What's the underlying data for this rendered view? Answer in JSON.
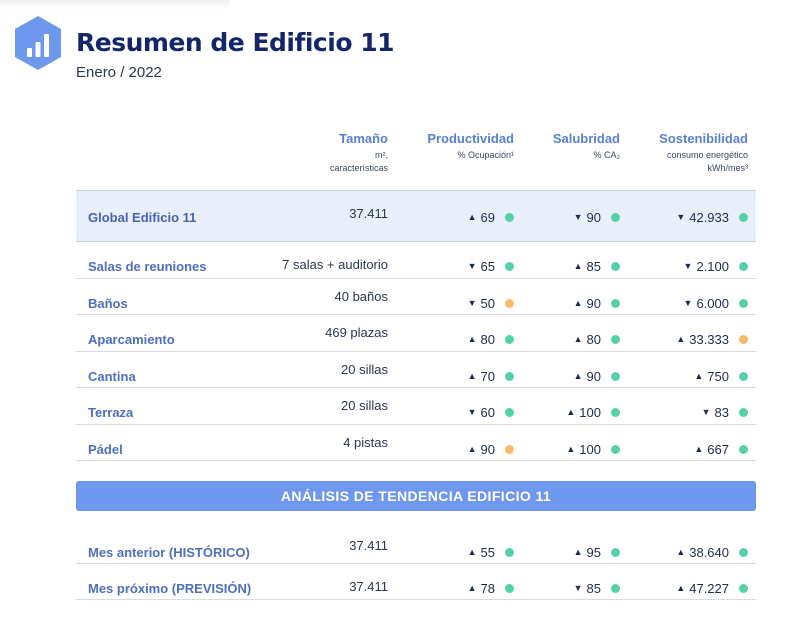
{
  "header": {
    "title": "Resumen de Edificio 11",
    "subtitle": "Enero / 2022"
  },
  "colors": {
    "accent": "#6e97ee",
    "title": "#13266a",
    "dot_green": "#55d1a6",
    "dot_orange": "#f7bb6a",
    "global_row_bg": "#e9effa"
  },
  "columns": {
    "size": {
      "label": "Tamaño",
      "sub1": "m², ",
      "sub2": "características"
    },
    "prod": {
      "label": "Productividad",
      "sub1": "% Ocupación¹",
      "sub2": ""
    },
    "sal": {
      "label": "Salubridad",
      "sub1": "% CA₂",
      "sub2": ""
    },
    "sost": {
      "label": "Sostenibilidad",
      "sub1": "consumo energético",
      "sub2": "kWh/mes³"
    }
  },
  "rows": [
    {
      "name": "Global Edificio 11",
      "size": "37.411",
      "prod": "69",
      "prod_dir": "up",
      "prod_status": "green",
      "sal": "90",
      "sal_dir": "down",
      "sal_status": "green",
      "sost": "42.933",
      "sost_dir": "down",
      "sost_status": "green"
    },
    {
      "name": "Salas de reuniones",
      "size": "7 salas + auditorio",
      "prod": "65",
      "prod_dir": "down",
      "prod_status": "green",
      "sal": "85",
      "sal_dir": "up",
      "sal_status": "green",
      "sost": "2.100",
      "sost_dir": "down",
      "sost_status": "green"
    },
    {
      "name": "Baños",
      "size": "40 baños",
      "prod": "50",
      "prod_dir": "down",
      "prod_status": "orange",
      "sal": "90",
      "sal_dir": "up",
      "sal_status": "green",
      "sost": "6.000",
      "sost_dir": "down",
      "sost_status": "green"
    },
    {
      "name": "Aparcamiento",
      "size": "469 plazas",
      "prod": "80",
      "prod_dir": "up",
      "prod_status": "green",
      "sal": "80",
      "sal_dir": "up",
      "sal_status": "green",
      "sost": "33.333",
      "sost_dir": "up",
      "sost_status": "orange"
    },
    {
      "name": "Cantina",
      "size": "20 sillas",
      "prod": "70",
      "prod_dir": "up",
      "prod_status": "green",
      "sal": "90",
      "sal_dir": "up",
      "sal_status": "green",
      "sost": "750",
      "sost_dir": "up",
      "sost_status": "green"
    },
    {
      "name": "Terraza",
      "size": "20 sillas",
      "prod": "60",
      "prod_dir": "down",
      "prod_status": "green",
      "sal": "100",
      "sal_dir": "up",
      "sal_status": "green",
      "sost": "83",
      "sost_dir": "down",
      "sost_status": "green"
    },
    {
      "name": "Pádel",
      "size": "4 pistas",
      "prod": "90",
      "prod_dir": "up",
      "prod_status": "orange",
      "sal": "100",
      "sal_dir": "up",
      "sal_status": "green",
      "sost": "667",
      "sost_dir": "up",
      "sost_status": "green"
    }
  ],
  "trend": {
    "banner": "ANÁLISIS DE TENDENCIA EDIFICIO 11",
    "rows": [
      {
        "name": "Mes anterior (HISTÓRICO)",
        "size": "37.411",
        "prod": "55",
        "prod_dir": "up",
        "prod_status": "green",
        "sal": "95",
        "sal_dir": "up",
        "sal_status": "green",
        "sost": "38.640",
        "sost_dir": "up",
        "sost_status": "green"
      },
      {
        "name": "Mes próximo (PREVISIÓN)",
        "size": "37.411",
        "prod": "78",
        "prod_dir": "up",
        "prod_status": "green",
        "sal": "85",
        "sal_dir": "down",
        "sal_status": "green",
        "sost": "47.227",
        "sost_dir": "up",
        "sost_status": "green"
      }
    ]
  }
}
